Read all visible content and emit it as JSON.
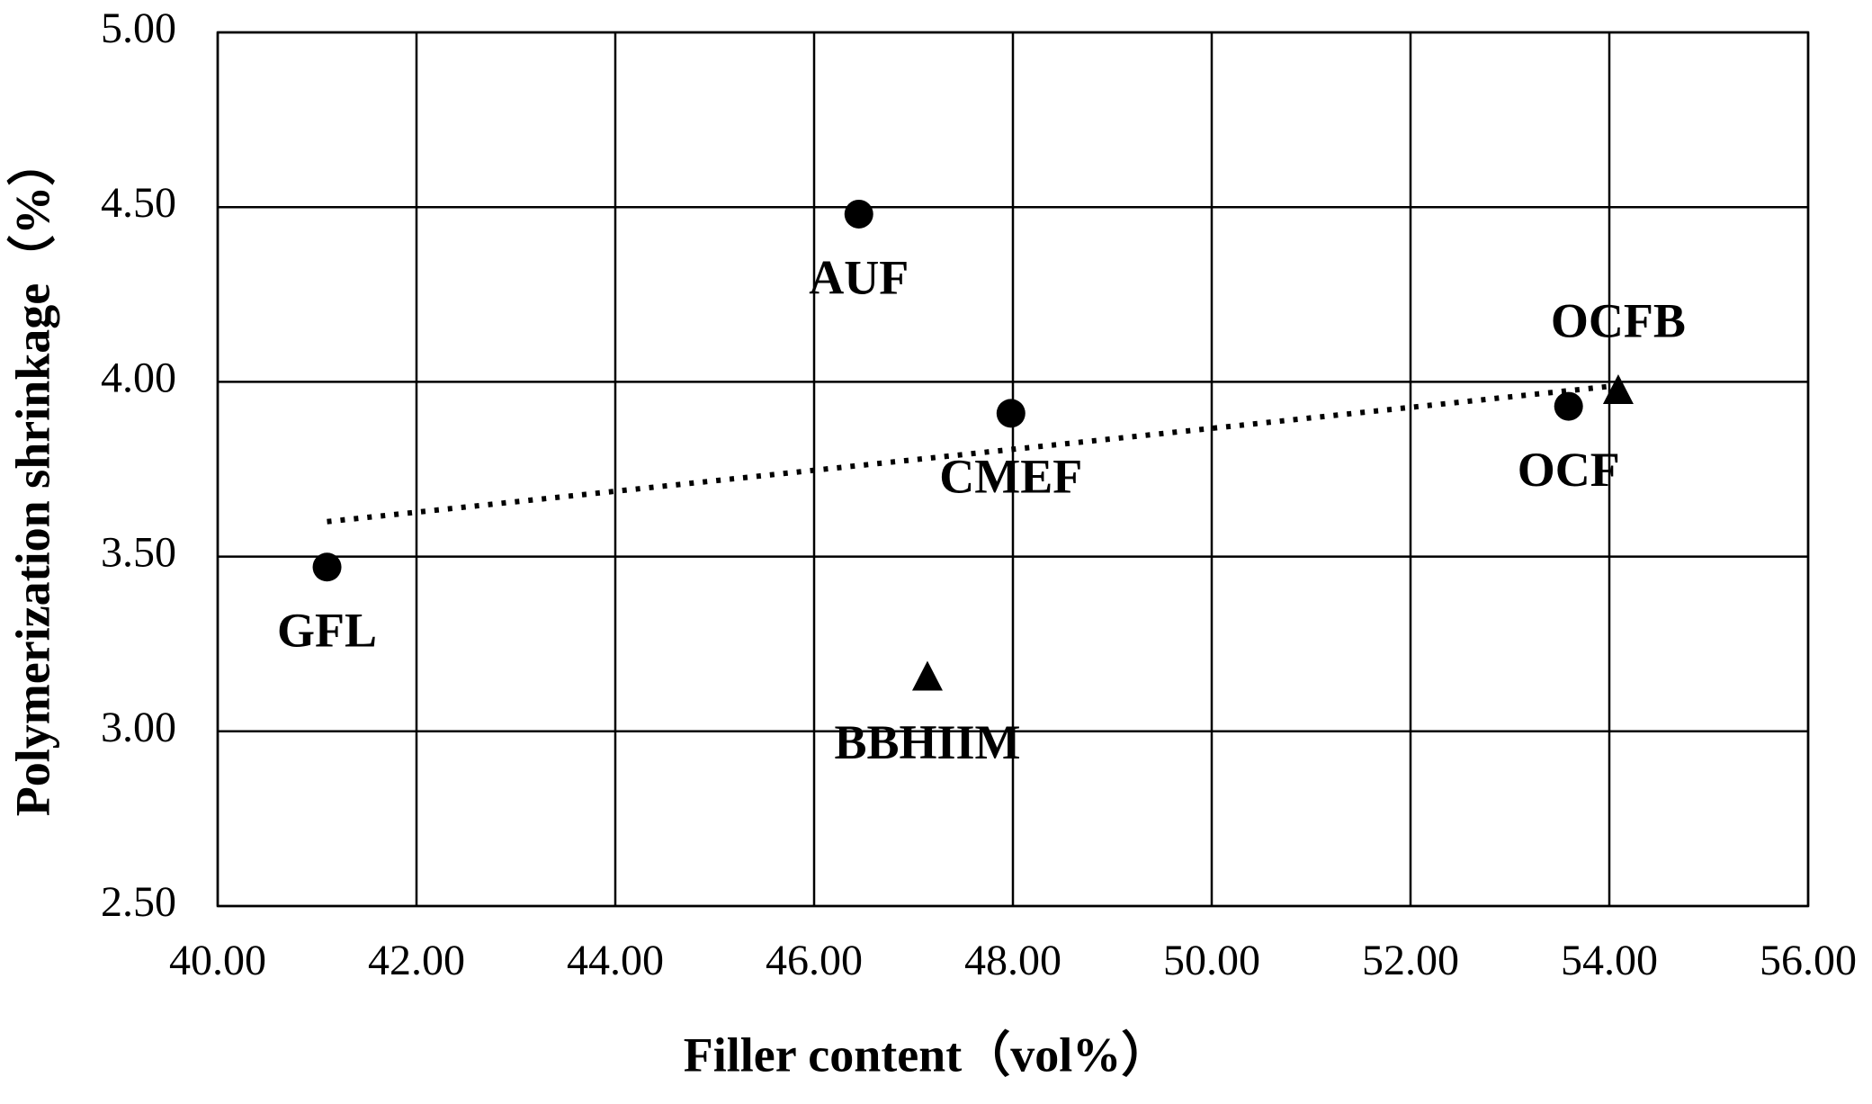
{
  "chart_data": {
    "type": "scatter",
    "x_label": "Filler content（vol%）",
    "y_label": "Polymerization shrinkage（%）",
    "xlim": [
      40,
      56
    ],
    "ylim": [
      2.5,
      5
    ],
    "xticks": [
      {
        "value": 40,
        "label": "40.00"
      },
      {
        "value": 42,
        "label": "42.00"
      },
      {
        "value": 44,
        "label": "44.00"
      },
      {
        "value": 46,
        "label": "46.00"
      },
      {
        "value": 48,
        "label": "48.00"
      },
      {
        "value": 50,
        "label": "50.00"
      },
      {
        "value": 52,
        "label": "52.00"
      },
      {
        "value": 54,
        "label": "54.00"
      },
      {
        "value": 56,
        "label": "56.00"
      }
    ],
    "yticks": [
      {
        "value": 2.5,
        "label": "2.50"
      },
      {
        "value": 3,
        "label": "3.00"
      },
      {
        "value": 3.5,
        "label": "3.50"
      },
      {
        "value": 4,
        "label": "4.00"
      },
      {
        "value": 4.5,
        "label": "4.50"
      },
      {
        "value": 5,
        "label": "5.00"
      }
    ],
    "grid": true,
    "series": [
      {
        "marker": "circle",
        "color": "#000000",
        "x": [
          41.1,
          46.45,
          47.98,
          53.59
        ],
        "values": [
          3.47,
          4.48,
          3.91,
          3.93
        ],
        "labels": [
          "GFL",
          "AUF",
          "CMEF",
          "OCF"
        ]
      },
      {
        "marker": "triangle",
        "color": "#000000",
        "x": [
          47.14,
          54.09
        ],
        "values": [
          3.15,
          3.97
        ],
        "labels": [
          "BBHIIM",
          "OCFB"
        ]
      }
    ],
    "trendline": {
      "style": "dotted",
      "color": "#000000",
      "x": [
        41.1,
        54.1
      ],
      "values": [
        3.6,
        3.99
      ]
    }
  }
}
